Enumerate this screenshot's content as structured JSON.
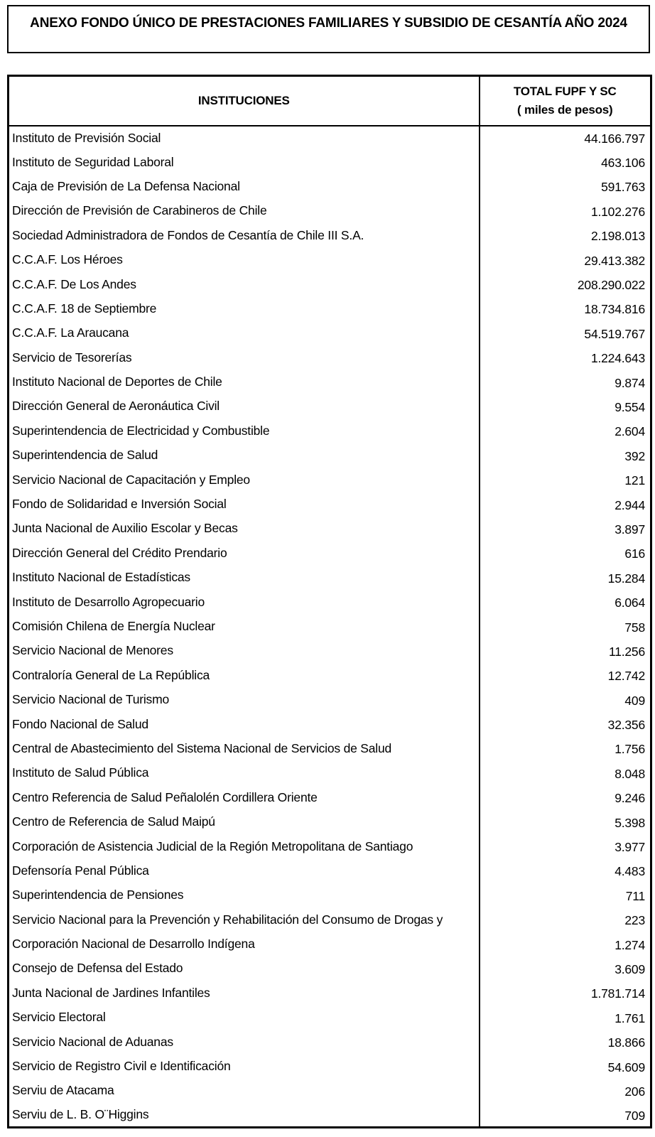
{
  "title": "ANEXO FONDO ÚNICO DE PRESTACIONES FAMILIARES Y SUBSIDIO DE CESANTÍA AÑO 2024",
  "table": {
    "col1_header": "INSTITUCIONES",
    "col2_header_line1": "TOTAL FUPF Y SC",
    "col2_header_line2": "( miles de pesos)",
    "rows": [
      {
        "institucion": "Instituto de Previsión Social",
        "total": "44.166.797"
      },
      {
        "institucion": "Instituto de Seguridad Laboral",
        "total": "463.106"
      },
      {
        "institucion": "Caja de Previsión de La Defensa Nacional",
        "total": "591.763"
      },
      {
        "institucion": "Dirección de Previsión de Carabineros de Chile",
        "total": "1.102.276"
      },
      {
        "institucion": "Sociedad Administradora de Fondos de Cesantía de Chile III S.A.",
        "total": "2.198.013"
      },
      {
        "institucion": "C.C.A.F. Los Héroes",
        "total": "29.413.382"
      },
      {
        "institucion": "C.C.A.F. De Los Andes",
        "total": "208.290.022"
      },
      {
        "institucion": "C.C.A.F. 18 de Septiembre",
        "total": "18.734.816"
      },
      {
        "institucion": "C.C.A.F. La Araucana",
        "total": "54.519.767"
      },
      {
        "institucion": "Servicio de Tesorerías",
        "total": "1.224.643"
      },
      {
        "institucion": "Instituto Nacional de Deportes de Chile",
        "total": "9.874"
      },
      {
        "institucion": "Dirección General de Aeronáutica Civil",
        "total": "9.554"
      },
      {
        "institucion": "Superintendencia de Electricidad y Combustible",
        "total": "2.604"
      },
      {
        "institucion": "Superintendencia de Salud",
        "total": "392"
      },
      {
        "institucion": "Servicio Nacional de Capacitación y Empleo",
        "total": "121"
      },
      {
        "institucion": "Fondo de Solidaridad e Inversión Social",
        "total": "2.944"
      },
      {
        "institucion": "Junta Nacional de Auxilio Escolar y Becas",
        "total": "3.897"
      },
      {
        "institucion": "Dirección General del Crédito Prendario",
        "total": "616"
      },
      {
        "institucion": "Instituto Nacional de Estadísticas",
        "total": "15.284"
      },
      {
        "institucion": "Instituto de Desarrollo Agropecuario",
        "total": "6.064"
      },
      {
        "institucion": "Comisión Chilena de Energía Nuclear",
        "total": "758"
      },
      {
        "institucion": "Servicio Nacional de Menores",
        "total": "11.256"
      },
      {
        "institucion": "Contraloría General de La República",
        "total": "12.742"
      },
      {
        "institucion": "Servicio Nacional de Turismo",
        "total": "409"
      },
      {
        "institucion": "Fondo Nacional de Salud",
        "total": "32.356"
      },
      {
        "institucion": "Central de Abastecimiento del Sistema Nacional de Servicios de Salud",
        "total": "1.756"
      },
      {
        "institucion": "Instituto de Salud Pública",
        "total": "8.048"
      },
      {
        "institucion": "Centro Referencia de Salud Peñalolén Cordillera Oriente",
        "total": "9.246"
      },
      {
        "institucion": "Centro de Referencia de Salud Maipú",
        "total": "5.398"
      },
      {
        "institucion": "Corporación de Asistencia Judicial de la Región Metropolitana de Santiago",
        "total": "3.977"
      },
      {
        "institucion": "Defensoría Penal Pública",
        "total": "4.483"
      },
      {
        "institucion": "Superintendencia de Pensiones",
        "total": "711"
      },
      {
        "institucion": "Servicio Nacional para la Prevención y Rehabilitación del Consumo de Drogas y",
        "total": "223"
      },
      {
        "institucion": "Corporación Nacional de Desarrollo Indígena",
        "total": "1.274"
      },
      {
        "institucion": "Consejo de Defensa del Estado",
        "total": "3.609"
      },
      {
        "institucion": "Junta Nacional de Jardines Infantiles",
        "total": "1.781.714"
      },
      {
        "institucion": "Servicio Electoral",
        "total": "1.761"
      },
      {
        "institucion": "Servicio Nacional de Aduanas",
        "total": "18.866"
      },
      {
        "institucion": "Servicio de Registro Civil e Identificación",
        "total": "54.609"
      },
      {
        "institucion": "Serviu de Atacama",
        "total": "206"
      },
      {
        "institucion": "Serviu de L. B. O¨Higgins",
        "total": "709"
      }
    ]
  }
}
